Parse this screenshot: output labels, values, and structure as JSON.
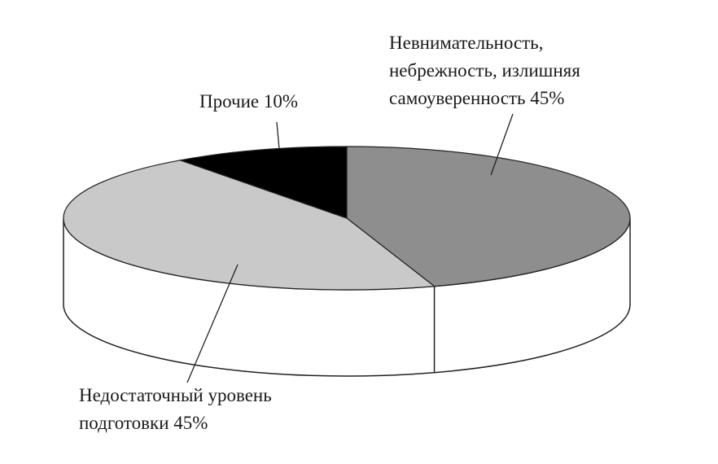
{
  "chart_data": {
    "type": "pie",
    "categories": [
      [
        "Невнимательность,",
        "небрежность, излишняя",
        "самоуверенность"
      ],
      [
        "Недостаточный уровень",
        "подготовки"
      ],
      [
        "Прочие"
      ]
    ],
    "values": [
      45,
      45,
      10
    ],
    "value_labels": [
      "45%",
      "45%",
      "10%"
    ],
    "colors": [
      "#8e8e8e",
      "#c9c9c9",
      "#000000"
    ]
  }
}
